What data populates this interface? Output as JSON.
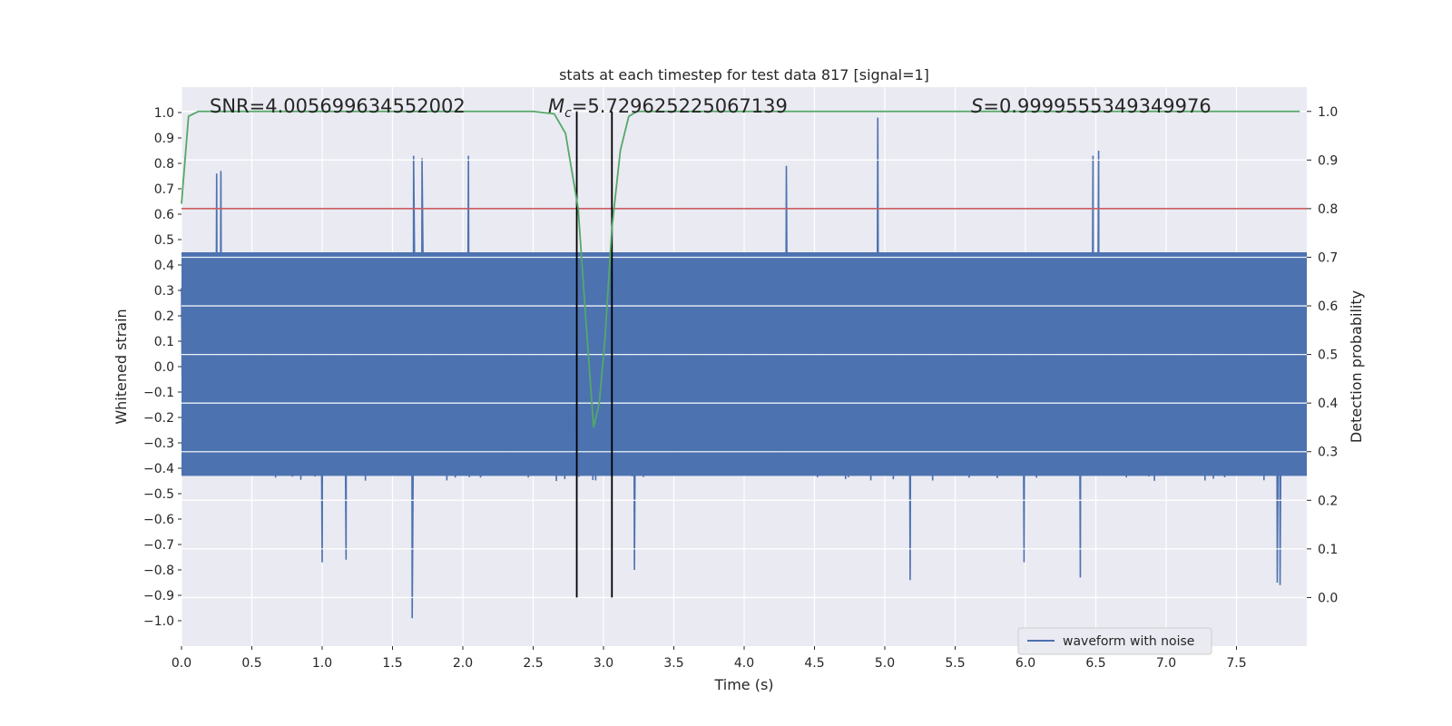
{
  "chart_data": {
    "type": "line",
    "title": "stats at each timestep for test data 817 [signal=1]",
    "xlabel": "Time (s)",
    "ylabel_left": "Whitened strain",
    "ylabel_right": "Detection probability",
    "xlim": [
      0.0,
      8.0
    ],
    "ylim_left": [
      -1.1,
      1.1
    ],
    "ylim_right": [
      -0.1,
      1.05
    ],
    "x_ticks": [
      "0.0",
      "0.5",
      "1.0",
      "1.5",
      "2.0",
      "2.5",
      "3.0",
      "3.5",
      "4.0",
      "4.5",
      "5.0",
      "5.5",
      "6.0",
      "6.5",
      "7.0",
      "7.5"
    ],
    "y_ticks_left": [
      "1.0",
      "0.9",
      "0.8",
      "0.7",
      "0.6",
      "0.5",
      "0.4",
      "0.3",
      "0.2",
      "0.1",
      "0.0",
      "−0.1",
      "−0.2",
      "−0.3",
      "−0.4",
      "−0.5",
      "−0.6",
      "−0.7",
      "−0.8",
      "−0.9",
      "−1.0"
    ],
    "y_ticks_right": [
      "1.0",
      "0.9",
      "0.8",
      "0.7",
      "0.6",
      "0.5",
      "0.4",
      "0.3",
      "0.2",
      "0.1",
      "0.0"
    ],
    "annotations": {
      "snr": "SNR=4.005699634552002",
      "mc_symbol": "M",
      "mc_subscript": "c",
      "mc_value": "=5.729625225067139",
      "s_symbol": "S",
      "s_value": "=0.9999555349349976"
    },
    "legend": {
      "label": "waveform with noise",
      "location": "lower-right"
    },
    "threshold_probability": 0.8,
    "vertical_lines_time": [
      2.81,
      3.06
    ],
    "waveform": {
      "name": "waveform with noise",
      "t_start": 0.0,
      "t_end": 7.98,
      "n_samples": 1600,
      "typical_upper": 0.45,
      "typical_lower": -0.43,
      "peak_points": [
        {
          "t": 0.25,
          "v": 0.76
        },
        {
          "t": 0.28,
          "v": 0.77
        },
        {
          "t": 1.65,
          "v": 0.83
        },
        {
          "t": 1.71,
          "v": 0.82
        },
        {
          "t": 2.04,
          "v": 0.83
        },
        {
          "t": 4.3,
          "v": 0.79
        },
        {
          "t": 4.95,
          "v": 0.98
        },
        {
          "t": 6.48,
          "v": 0.83
        },
        {
          "t": 6.52,
          "v": 0.85
        },
        {
          "t": 1.64,
          "v": -0.99
        },
        {
          "t": 5.18,
          "v": -0.84
        },
        {
          "t": 7.81,
          "v": -0.86
        },
        {
          "t": 7.79,
          "v": -0.85
        },
        {
          "t": 1.0,
          "v": -0.77
        },
        {
          "t": 1.17,
          "v": -0.76
        },
        {
          "t": 5.99,
          "v": -0.77
        },
        {
          "t": 6.39,
          "v": -0.83
        },
        {
          "t": 3.22,
          "v": -0.8
        }
      ]
    },
    "detection_probability": {
      "name": "detection probability",
      "t": [
        0.0,
        0.05,
        0.12,
        0.5,
        1.0,
        1.5,
        2.0,
        2.5,
        2.65,
        2.73,
        2.82,
        2.88,
        2.93,
        2.97,
        3.01,
        3.06,
        3.12,
        3.18,
        3.24,
        3.35,
        4.0,
        5.0,
        6.0,
        7.0,
        7.95
      ],
      "values": [
        0.81,
        0.99,
        1.0,
        1.0,
        1.0,
        1.0,
        1.0,
        1.0,
        0.995,
        0.955,
        0.8,
        0.55,
        0.35,
        0.4,
        0.53,
        0.76,
        0.92,
        0.99,
        1.0,
        1.0,
        1.0,
        1.0,
        1.0,
        1.0,
        1.0
      ]
    },
    "colors": {
      "waveform": "#4c72b0",
      "probability": "#55a868",
      "threshold": "#c44e52",
      "markers": "#000000",
      "axes_bg": "#eaeaf2",
      "grid": "#ffffff"
    }
  }
}
